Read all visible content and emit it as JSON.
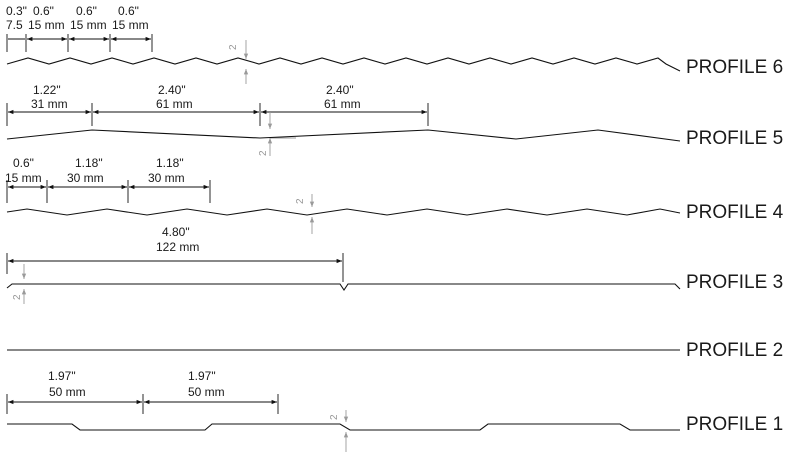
{
  "profiles": [
    {
      "label": "PROFILE 6",
      "dims": [
        {
          "in": "0.3\"",
          "mm": "7.5"
        },
        {
          "in": "0.6\"",
          "mm": "15 mm"
        },
        {
          "in": "0.6\"",
          "mm": "15 mm"
        },
        {
          "in": "0.6\"",
          "mm": "15 mm"
        }
      ],
      "depth": "2"
    },
    {
      "label": "PROFILE 5",
      "dims": [
        {
          "in": "1.22\"",
          "mm": "31 mm"
        },
        {
          "in": "2.40\"",
          "mm": "61 mm"
        },
        {
          "in": "2.40\"",
          "mm": "61 mm"
        }
      ],
      "depth": "2"
    },
    {
      "label": "PROFILE 4",
      "dims": [
        {
          "in": "0.6\"",
          "mm": "15 mm"
        },
        {
          "in": "1.18\"",
          "mm": "30 mm"
        },
        {
          "in": "1.18\"",
          "mm": "30 mm"
        }
      ],
      "depth": "2"
    },
    {
      "label": "PROFILE 3",
      "dims": [
        {
          "in": "4.80\"",
          "mm": "122 mm"
        }
      ],
      "depth": "2"
    },
    {
      "label": "PROFILE 2",
      "dims": []
    },
    {
      "label": "PROFILE 1",
      "dims": [
        {
          "in": "1.97\"",
          "mm": "50 mm"
        },
        {
          "in": "1.97\"",
          "mm": "50 mm"
        }
      ],
      "depth": "2"
    }
  ]
}
